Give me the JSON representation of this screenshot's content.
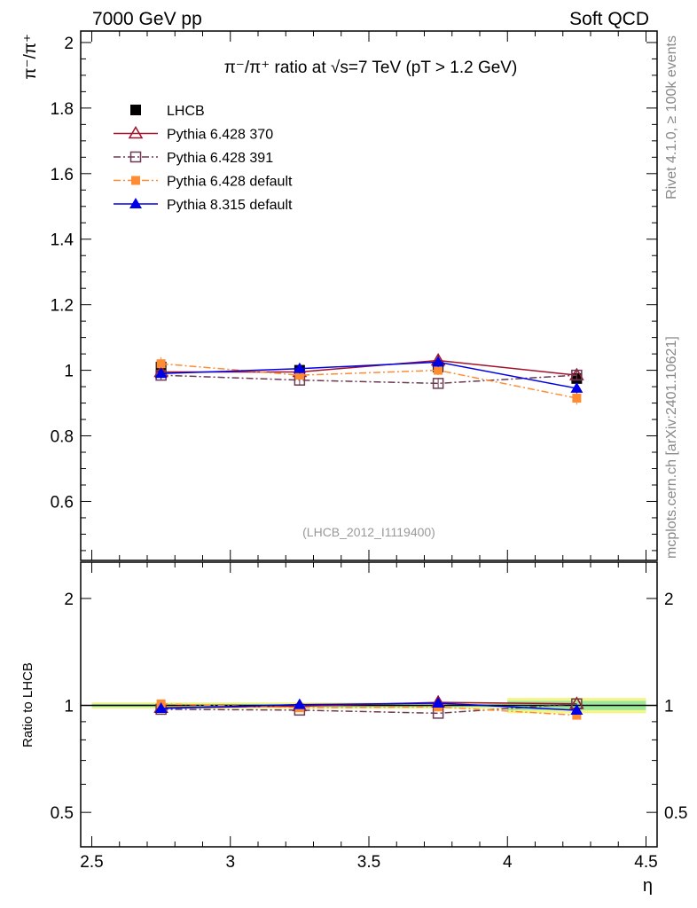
{
  "header": {
    "left": "7000 GeV pp",
    "right": "Soft QCD"
  },
  "side_labels": {
    "rivet": "Rivet 4.1.0, ≥ 100k events",
    "mcplots": "mcplots.cern.ch [arXiv:2401.10621]"
  },
  "chart_data": [
    {
      "type": "line",
      "title": "π⁻/π⁺ ratio at √s=7 TeV (pT > 1.2 GeV)",
      "ylabel": "π⁻/π⁺",
      "xlabel": "η",
      "analysis_id": "(LHCB_2012_I1119400)",
      "xlim": [
        2.46,
        4.54
      ],
      "ylim": [
        0.42,
        2.035
      ],
      "yticks": [
        0.6,
        0.8,
        1,
        1.2,
        1.4,
        1.6,
        1.8,
        2
      ],
      "ytick_labels": [
        "0.6",
        "0.8",
        "1",
        "1.2",
        "1.4",
        "1.6",
        "1.8",
        "2"
      ],
      "legend_position": "top-left",
      "x": [
        2.75,
        3.25,
        3.75,
        4.25
      ],
      "series": [
        {
          "name": "LHCB",
          "color": "#000000",
          "marker": "filled-square",
          "style": "none",
          "values": [
            1.01,
            1.0,
            1.01,
            0.975
          ],
          "errors": [
            0.02,
            0.02,
            0.02,
            0.02
          ]
        },
        {
          "name": "Pythia 6.428 370",
          "color": "#a0102a",
          "marker": "open-triangle",
          "style": "solid",
          "values": [
            0.995,
            0.995,
            1.03,
            0.985
          ],
          "errors": [
            0.015,
            0.015,
            0.015,
            0.015
          ]
        },
        {
          "name": "Pythia 6.428 391",
          "color": "#6b3a52",
          "marker": "open-square",
          "style": "dashdot",
          "values": [
            0.985,
            0.97,
            0.96,
            0.985
          ],
          "errors": [
            0.015,
            0.015,
            0.015,
            0.015
          ]
        },
        {
          "name": "Pythia 6.428 default",
          "color": "#ff8c33",
          "marker": "filled-square-small",
          "style": "dashdot",
          "values": [
            1.02,
            0.985,
            1.0,
            0.915
          ],
          "errors": [
            0.02,
            0.015,
            0.015,
            0.02
          ]
        },
        {
          "name": "Pythia 8.315 default",
          "color": "#0000e6",
          "marker": "filled-triangle",
          "style": "solid",
          "values": [
            0.99,
            1.005,
            1.025,
            0.945
          ],
          "errors": [
            0.015,
            0.015,
            0.015,
            0.015
          ]
        }
      ]
    },
    {
      "type": "line",
      "ylabel": "Ratio to LHCB",
      "xlabel": "η",
      "yscale": "log",
      "ylim": [
        0.4,
        2.53
      ],
      "yticks": [
        0.5,
        1,
        2
      ],
      "ytick_labels": [
        "0.5",
        "1",
        "2"
      ],
      "xticks": [
        2.5,
        3,
        3.5,
        4,
        4.5
      ],
      "xtick_labels": [
        "2.5",
        "3",
        "3.5",
        "4",
        "4.5"
      ],
      "band_note": "reference uncertainty band",
      "band_inner": [
        0.01,
        0.01,
        0.01,
        0.03
      ],
      "band_outer": [
        0.02,
        0.02,
        0.02,
        0.05
      ]
    }
  ]
}
